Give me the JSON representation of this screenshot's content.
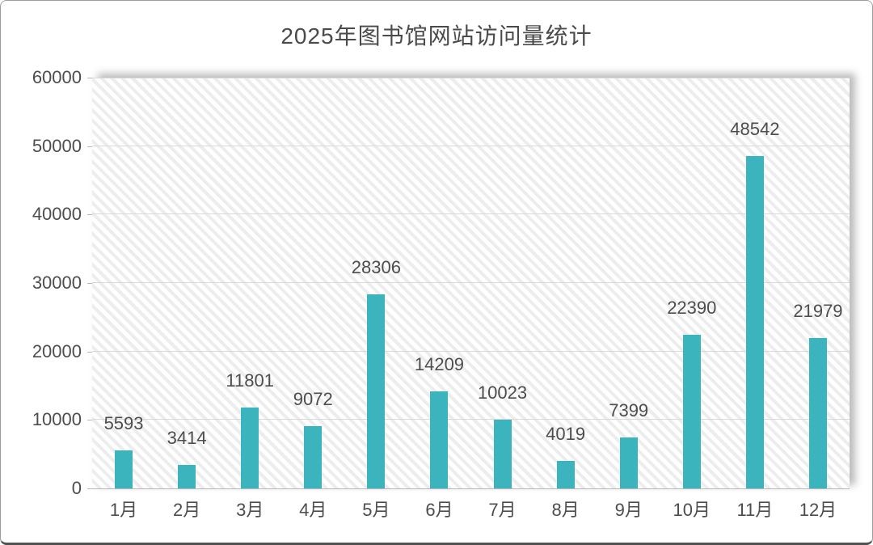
{
  "title": "2025年图书馆网站访问量统计",
  "chart_data": {
    "type": "bar",
    "title": "2025年图书馆网站访问量统计",
    "categories": [
      "1月",
      "2月",
      "3月",
      "4月",
      "5月",
      "6月",
      "7月",
      "8月",
      "9月",
      "10月",
      "11月",
      "12月"
    ],
    "values": [
      5593,
      3414,
      11801,
      9072,
      28306,
      14209,
      10023,
      4019,
      7399,
      22390,
      48542,
      21979
    ],
    "xlabel": "",
    "ylabel": "",
    "ylim": [
      0,
      60000
    ],
    "ytick_interval": 10000,
    "yticks": [
      0,
      10000,
      20000,
      30000,
      40000,
      50000,
      60000
    ],
    "ytick_labels": [
      "0",
      "10000",
      "20000",
      "30000",
      "40000",
      "50000",
      "60000"
    ],
    "grid": "horizontal",
    "legend_position": "none",
    "data_labels": "outside-end",
    "plot_background": "light-downward-diagonal-hatch"
  },
  "colors": {
    "bar": "#3bb4bd",
    "label_text": "#4d4d4d",
    "title_text": "#4a4a4a",
    "gridline": "#d9d9d9",
    "axis_line": "#b8b8b8",
    "hatch_stripe": "#ededed",
    "frame_border": "#9e9e9e",
    "frame_bottom_border": "#515151"
  }
}
